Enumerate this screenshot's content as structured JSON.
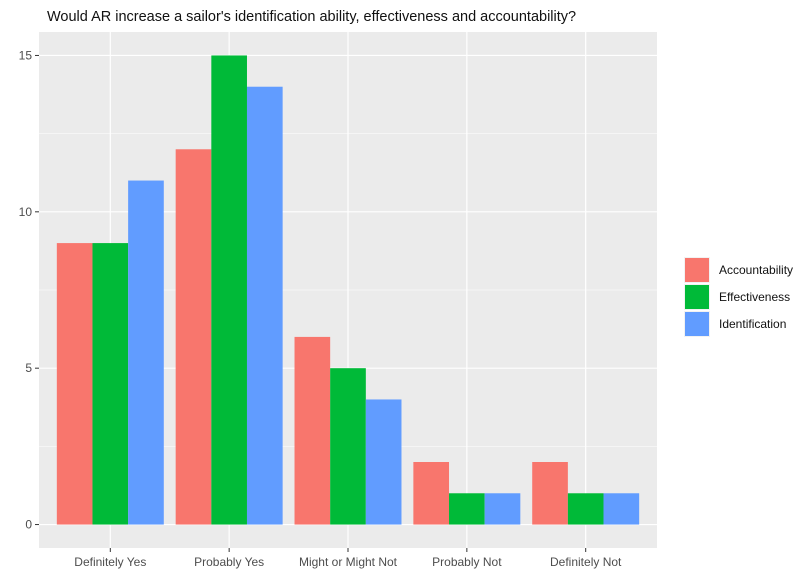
{
  "chart_data": {
    "type": "bar",
    "title": "Would AR increase a sailor's identification ability, effectiveness and accountability?",
    "xlabel": "",
    "ylabel": "",
    "categories": [
      "Definitely Yes",
      "Probably Yes",
      "Might or Might Not",
      "Probably Not",
      "Definitely Not"
    ],
    "series": [
      {
        "name": "Accountability",
        "color": "#F8766D",
        "values": [
          9,
          12,
          6,
          2,
          2
        ]
      },
      {
        "name": "Effectiveness",
        "color": "#00BA38",
        "values": [
          9,
          15,
          5,
          1,
          1
        ]
      },
      {
        "name": "Identification",
        "color": "#619CFF",
        "values": [
          11,
          14,
          4,
          1,
          1
        ]
      }
    ],
    "ylim": [
      -0.75,
      15.75
    ],
    "yticks": [
      0,
      5,
      10,
      15
    ],
    "grid": true,
    "legend": "right",
    "panel_background": "#EBEBEB"
  }
}
